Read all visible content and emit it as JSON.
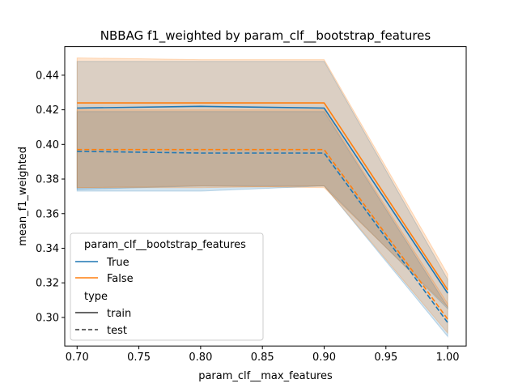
{
  "chart_data": {
    "type": "line",
    "title": "NBBAG f1_weighted by param_clf__bootstrap_features",
    "xlabel": "param_clf__max_features",
    "ylabel": "mean_f1_weighted",
    "xlim": [
      0.69,
      1.015
    ],
    "ylim": [
      0.2835,
      0.4565
    ],
    "x_ticks": [
      "0.70",
      "0.75",
      "0.80",
      "0.85",
      "0.90",
      "0.95",
      "1.00"
    ],
    "x_tick_values": [
      0.7,
      0.75,
      0.8,
      0.85,
      0.9,
      0.95,
      1.0
    ],
    "y_ticks": [
      "0.30",
      "0.32",
      "0.34",
      "0.36",
      "0.38",
      "0.40",
      "0.42",
      "0.44"
    ],
    "y_tick_values": [
      0.3,
      0.32,
      0.34,
      0.36,
      0.38,
      0.4,
      0.42,
      0.44
    ],
    "grid": false,
    "legend": {
      "placement": "lower-left",
      "hue_title": "param_clf__bootstrap_features",
      "style_title": "type",
      "style_entries": [
        {
          "label": "train",
          "dash": "solid"
        },
        {
          "label": "test",
          "dash": "dashed"
        }
      ]
    },
    "series": [
      {
        "name": "True",
        "type": "train",
        "color": "#1f77b4",
        "dash": "solid",
        "x": [
          0.7,
          0.8,
          0.9,
          1.0
        ],
        "y": [
          0.421,
          0.422,
          0.421,
          0.314
        ],
        "lower": [
          0.374,
          0.376,
          0.376,
          0.305
        ],
        "upper": [
          0.448,
          0.448,
          0.448,
          0.322
        ]
      },
      {
        "name": "False",
        "type": "train",
        "color": "#ff7f0e",
        "dash": "solid",
        "x": [
          0.7,
          0.8,
          0.9,
          1.0
        ],
        "y": [
          0.424,
          0.424,
          0.424,
          0.316
        ],
        "lower": [
          0.375,
          0.376,
          0.375,
          0.306
        ],
        "upper": [
          0.45,
          0.449,
          0.449,
          0.325
        ]
      },
      {
        "name": "True",
        "type": "test",
        "color": "#1f77b4",
        "dash": "dashed",
        "x": [
          0.7,
          0.8,
          0.9,
          1.0
        ],
        "y": [
          0.396,
          0.395,
          0.395,
          0.297
        ],
        "lower": [
          0.373,
          0.373,
          0.376,
          0.289
        ],
        "upper": [
          0.419,
          0.419,
          0.419,
          0.306
        ]
      },
      {
        "name": "False",
        "type": "test",
        "color": "#ff7f0e",
        "dash": "dashed",
        "x": [
          0.7,
          0.8,
          0.9,
          1.0
        ],
        "y": [
          0.397,
          0.397,
          0.397,
          0.299
        ],
        "lower": [
          0.375,
          0.375,
          0.376,
          0.291
        ],
        "upper": [
          0.42,
          0.42,
          0.42,
          0.308
        ]
      }
    ]
  }
}
